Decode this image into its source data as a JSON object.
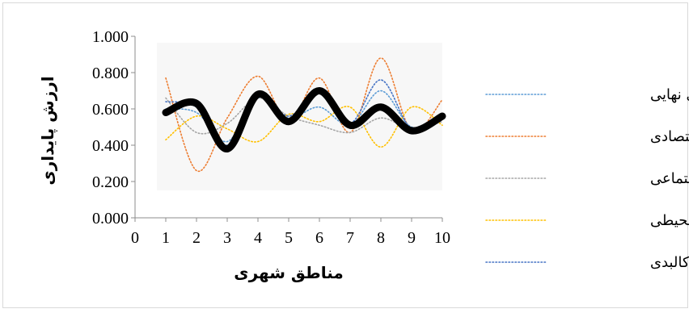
{
  "chart_data": {
    "type": "line",
    "title": "",
    "xlabel": "مناطق شهری",
    "ylabel": "ارزش پایداری",
    "x": [
      1,
      2,
      3,
      4,
      5,
      6,
      7,
      8,
      9,
      10
    ],
    "xlim": [
      0,
      10
    ],
    "xticks": [
      "0",
      "1",
      "2",
      "3",
      "4",
      "5",
      "6",
      "7",
      "8",
      "9",
      "10"
    ],
    "ylim": [
      0,
      1
    ],
    "yticks": [
      "0.000",
      "0.200",
      "0.400",
      "0.600",
      "0.800",
      "1.000"
    ],
    "grid": false,
    "legend_position": "right",
    "series": [
      {
        "name": "پایداری نهایی",
        "color": "#5b9bd5",
        "values": [
          0.6,
          0.58,
          0.42,
          0.66,
          0.55,
          0.61,
          0.51,
          0.7,
          0.5,
          0.57
        ]
      },
      {
        "name": "پایداری اقتصادی",
        "color": "#ed7d31",
        "values": [
          0.77,
          0.26,
          0.55,
          0.78,
          0.53,
          0.77,
          0.47,
          0.88,
          0.48,
          0.65
        ]
      },
      {
        "name": "پایداری اجتماعی",
        "color": "#a5a5a5",
        "values": [
          0.66,
          0.47,
          0.52,
          0.66,
          0.56,
          0.51,
          0.47,
          0.55,
          0.49,
          0.53
        ]
      },
      {
        "name": "پایداری زیست محیطی",
        "color": "#ffc000",
        "values": [
          0.43,
          0.56,
          0.49,
          0.42,
          0.57,
          0.53,
          0.61,
          0.39,
          0.61,
          0.51
        ]
      },
      {
        "name": "پایداری کالبدی",
        "color": "#4472c4",
        "values": [
          0.64,
          0.61,
          0.4,
          0.67,
          0.56,
          0.69,
          0.52,
          0.76,
          0.49,
          0.57
        ]
      }
    ],
    "overlay_series": [
      {
        "color": "#000000",
        "values": [
          0.58,
          0.63,
          0.38,
          0.68,
          0.53,
          0.7,
          0.51,
          0.61,
          0.48,
          0.56
        ]
      }
    ]
  }
}
